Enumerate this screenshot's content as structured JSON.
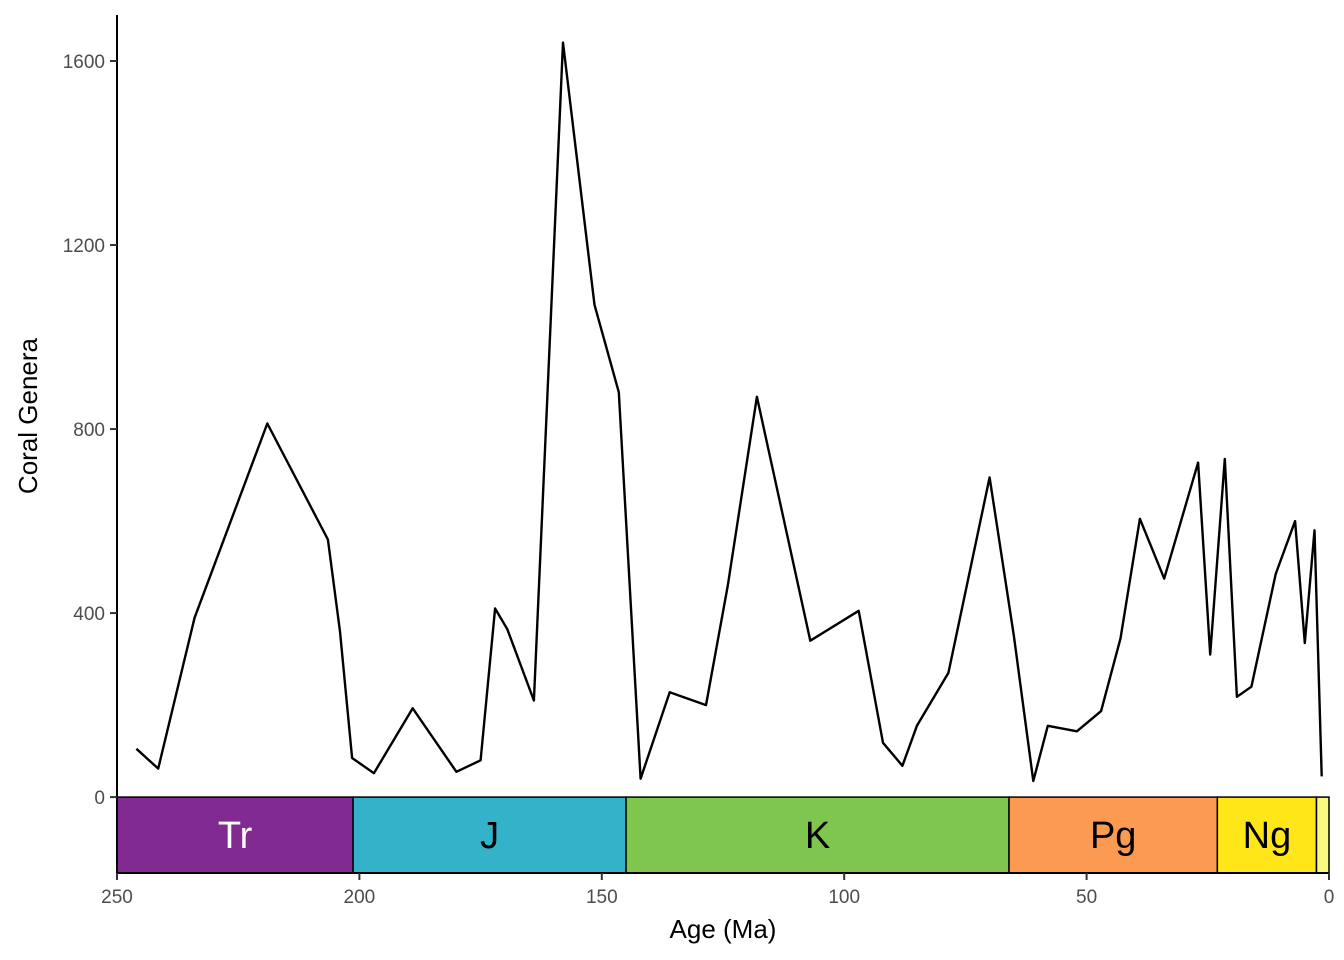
{
  "chart_data": {
    "type": "line",
    "title": "",
    "xlabel": "Age (Ma)",
    "ylabel": "Coral Genera",
    "xlim": [
      250,
      0
    ],
    "ylim": [
      -165,
      1700
    ],
    "x_reversed": true,
    "grid": false,
    "legend": "none",
    "x_ticks": [
      250,
      200,
      150,
      100,
      50,
      0
    ],
    "y_ticks": [
      0,
      400,
      800,
      1200,
      1600
    ],
    "line_color": "#000000",
    "series": [
      {
        "x": [
          246,
          241.5,
          234,
          219,
          206.5,
          204,
          201.5,
          197,
          189,
          180,
          175,
          172,
          169.5,
          164,
          158,
          151.5,
          146.5,
          142,
          136,
          128.5,
          124,
          118,
          107,
          97,
          92,
          88,
          85,
          78.5,
          70,
          65,
          61,
          58,
          52,
          47,
          43,
          39,
          34,
          27,
          24.5,
          21.5,
          19,
          16,
          11,
          7,
          5,
          3,
          1.5
        ],
        "y": [
          105,
          62,
          390,
          812,
          560,
          360,
          85,
          52,
          193,
          55,
          80,
          410,
          365,
          210,
          1640,
          1070,
          880,
          40,
          228,
          200,
          460,
          870,
          340,
          405,
          118,
          68,
          155,
          270,
          695,
          350,
          35,
          155,
          143,
          187,
          345,
          605,
          475,
          727,
          310,
          735,
          218,
          240,
          485,
          600,
          335,
          580,
          45
        ]
      }
    ],
    "periods": [
      {
        "label": "Tr",
        "start": 251.9,
        "end": 201.3,
        "color": "#812B92",
        "text_color": "#ffffff"
      },
      {
        "label": "J",
        "start": 201.3,
        "end": 145.0,
        "color": "#34B2C9",
        "text_color": "#000000"
      },
      {
        "label": "K",
        "start": 145.0,
        "end": 66.0,
        "color": "#7FC64E",
        "text_color": "#000000"
      },
      {
        "label": "Pg",
        "start": 66.0,
        "end": 23.03,
        "color": "#FD9A52",
        "text_color": "#000000"
      },
      {
        "label": "Ng",
        "start": 23.03,
        "end": 2.58,
        "color": "#FFE619",
        "text_color": "#000000"
      },
      {
        "label": "",
        "start": 2.58,
        "end": 0,
        "color": "#F9F97F",
        "text_color": "#000000"
      }
    ]
  }
}
